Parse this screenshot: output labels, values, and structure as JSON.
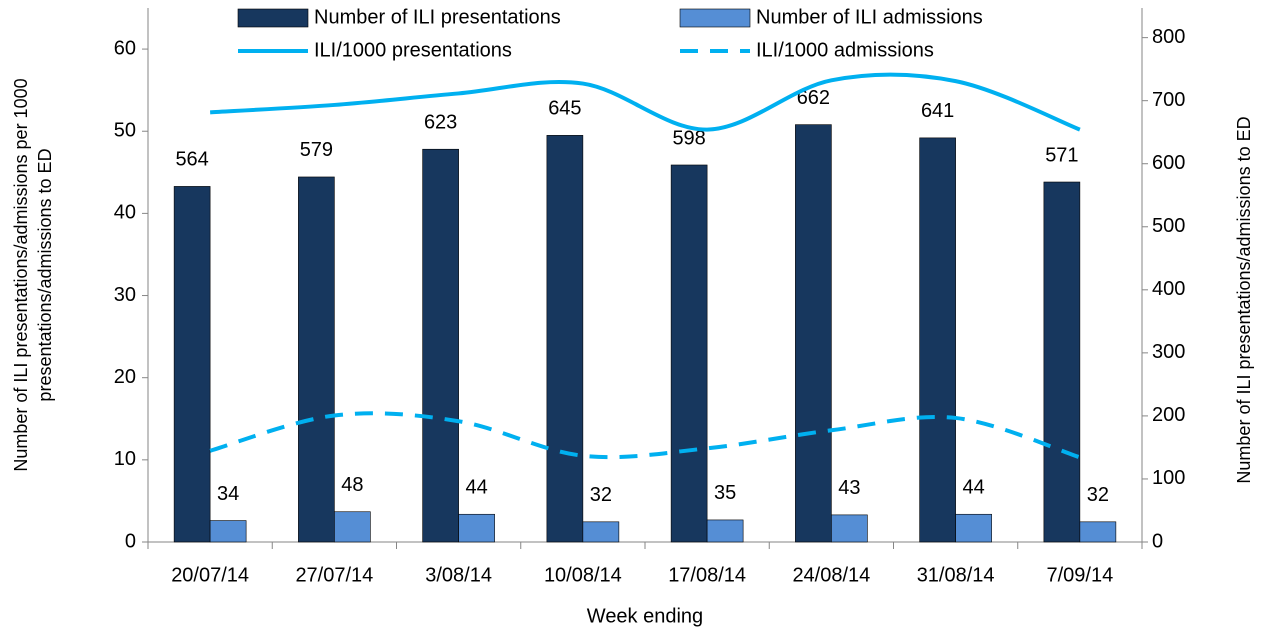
{
  "chart_data": {
    "type": "bar",
    "categories": [
      "20/07/14",
      "27/07/14",
      "3/08/14",
      "10/08/14",
      "17/08/14",
      "24/08/14",
      "31/08/14",
      "7/09/14"
    ],
    "series": [
      {
        "name": "Number of ILI presentations",
        "color": "#17375e",
        "kind": "bar",
        "axis": "y2",
        "values": [
          564,
          579,
          623,
          645,
          598,
          662,
          641,
          571
        ]
      },
      {
        "name": "Number of ILI admissions",
        "color": "#558ed5",
        "kind": "bar",
        "axis": "y2",
        "values": [
          34,
          48,
          44,
          32,
          35,
          43,
          44,
          32
        ]
      },
      {
        "name": "ILI/1000 presentations",
        "color": "#00b0f0",
        "kind": "line",
        "values": [
          52.3,
          53.2,
          54.6,
          55.8,
          50.2,
          56.2,
          56.1,
          50.2
        ]
      },
      {
        "name": "ILI/1000 admissions",
        "color": "#00b0f0",
        "kind": "line",
        "dashed": true,
        "values": [
          11.1,
          15.4,
          14.7,
          10.5,
          11.4,
          13.6,
          15.1,
          10.3
        ]
      }
    ],
    "xlabel": "Week ending",
    "ylabel": [
      "Number of ILI presentations/admissions per 1000",
      "presentations/admissions to ED"
    ],
    "y2label": "Number of ILI presentations/admissions  to ED",
    "ylim": [
      0,
      65
    ],
    "yticks": [
      0,
      10,
      20,
      30,
      40,
      50,
      60
    ],
    "y2lim": [
      0,
      847
    ],
    "y2ticks": [
      0,
      100,
      200,
      300,
      400,
      500,
      600,
      700,
      800
    ]
  }
}
